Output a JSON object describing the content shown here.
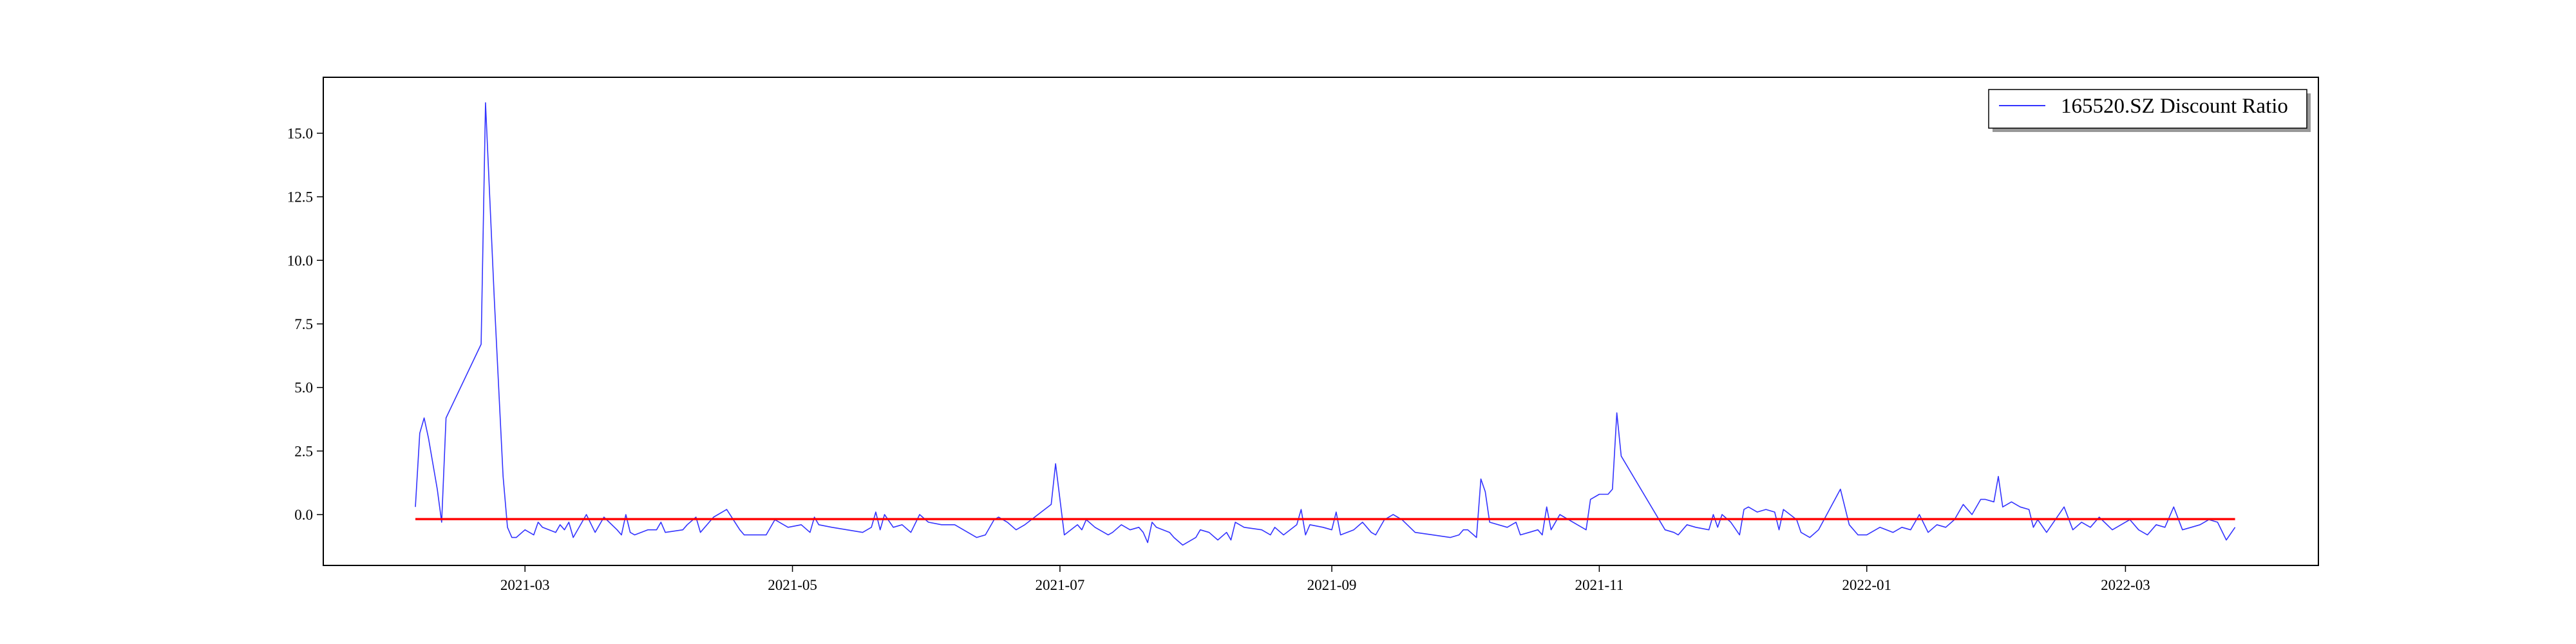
{
  "chart_data": {
    "type": "line",
    "title": "",
    "xlabel": "",
    "ylabel": "",
    "x_range": [
      "2021-01-14",
      "2022-04-14"
    ],
    "ylim": [
      -2.0,
      17.2
    ],
    "x_ticks": [
      {
        "date": "2021-03-01",
        "label": "2021-03"
      },
      {
        "date": "2021-05-01",
        "label": "2021-05"
      },
      {
        "date": "2021-07-01",
        "label": "2021-07"
      },
      {
        "date": "2021-09-01",
        "label": "2021-09"
      },
      {
        "date": "2021-11-01",
        "label": "2021-11"
      },
      {
        "date": "2022-01-01",
        "label": "2022-01"
      },
      {
        "date": "2022-03-01",
        "label": "2022-03"
      }
    ],
    "y_ticks": [
      {
        "value": 0.0,
        "label": "0.0"
      },
      {
        "value": 2.5,
        "label": "2.5"
      },
      {
        "value": 5.0,
        "label": "5.0"
      },
      {
        "value": 7.5,
        "label": "7.5"
      },
      {
        "value": 10.0,
        "label": "10.0"
      },
      {
        "value": 12.5,
        "label": "12.5"
      },
      {
        "value": 15.0,
        "label": "15.0"
      }
    ],
    "grid": false,
    "legend": {
      "position": "top-right",
      "entries": [
        "165520.SZ Discount Ratio"
      ]
    },
    "series": [
      {
        "name": "165520.SZ Discount Ratio",
        "color": "#3333ff",
        "points": [
          [
            "2021-02-04",
            0.3
          ],
          [
            "2021-02-05",
            3.2
          ],
          [
            "2021-02-06",
            3.8
          ],
          [
            "2021-02-07",
            3.0
          ],
          [
            "2021-02-09",
            1.0
          ],
          [
            "2021-02-10",
            -0.3
          ],
          [
            "2021-02-11",
            3.8
          ],
          [
            "2021-02-19",
            6.7
          ],
          [
            "2021-02-20",
            16.2
          ],
          [
            "2021-02-22",
            8.5
          ],
          [
            "2021-02-24",
            1.5
          ],
          [
            "2021-02-25",
            -0.5
          ],
          [
            "2021-02-26",
            -0.9
          ],
          [
            "2021-02-27",
            -0.9
          ],
          [
            "2021-03-01",
            -0.6
          ],
          [
            "2021-03-03",
            -0.8
          ],
          [
            "2021-03-04",
            -0.3
          ],
          [
            "2021-03-05",
            -0.5
          ],
          [
            "2021-03-08",
            -0.7
          ],
          [
            "2021-03-09",
            -0.4
          ],
          [
            "2021-03-10",
            -0.6
          ],
          [
            "2021-03-11",
            -0.3
          ],
          [
            "2021-03-12",
            -0.9
          ],
          [
            "2021-03-15",
            0.0
          ],
          [
            "2021-03-17",
            -0.7
          ],
          [
            "2021-03-19",
            -0.1
          ],
          [
            "2021-03-22",
            -0.6
          ],
          [
            "2021-03-23",
            -0.8
          ],
          [
            "2021-03-24",
            0.0
          ],
          [
            "2021-03-25",
            -0.7
          ],
          [
            "2021-03-26",
            -0.8
          ],
          [
            "2021-03-29",
            -0.6
          ],
          [
            "2021-03-31",
            -0.6
          ],
          [
            "2021-04-01",
            -0.3
          ],
          [
            "2021-04-02",
            -0.7
          ],
          [
            "2021-04-06",
            -0.6
          ],
          [
            "2021-04-07",
            -0.4
          ],
          [
            "2021-04-09",
            -0.1
          ],
          [
            "2021-04-10",
            -0.7
          ],
          [
            "2021-04-13",
            -0.1
          ],
          [
            "2021-04-15",
            0.1
          ],
          [
            "2021-04-16",
            0.2
          ],
          [
            "2021-04-19",
            -0.6
          ],
          [
            "2021-04-20",
            -0.8
          ],
          [
            "2021-04-23",
            -0.8
          ],
          [
            "2021-04-25",
            -0.8
          ],
          [
            "2021-04-27",
            -0.2
          ],
          [
            "2021-04-28",
            -0.3
          ],
          [
            "2021-04-30",
            -0.5
          ],
          [
            "2021-05-03",
            -0.4
          ],
          [
            "2021-05-05",
            -0.7
          ],
          [
            "2021-05-06",
            -0.1
          ],
          [
            "2021-05-07",
            -0.4
          ],
          [
            "2021-05-10",
            -0.5
          ],
          [
            "2021-05-17",
            -0.7
          ],
          [
            "2021-05-19",
            -0.5
          ],
          [
            "2021-05-20",
            0.1
          ],
          [
            "2021-05-21",
            -0.6
          ],
          [
            "2021-05-22",
            0.0
          ],
          [
            "2021-05-24",
            -0.5
          ],
          [
            "2021-05-26",
            -0.4
          ],
          [
            "2021-05-28",
            -0.7
          ],
          [
            "2021-05-30",
            0.0
          ],
          [
            "2021-06-01",
            -0.3
          ],
          [
            "2021-06-04",
            -0.4
          ],
          [
            "2021-06-07",
            -0.4
          ],
          [
            "2021-06-10",
            -0.7
          ],
          [
            "2021-06-12",
            -0.9
          ],
          [
            "2021-06-14",
            -0.8
          ],
          [
            "2021-06-16",
            -0.2
          ],
          [
            "2021-06-17",
            -0.1
          ],
          [
            "2021-06-19",
            -0.3
          ],
          [
            "2021-06-21",
            -0.6
          ],
          [
            "2021-06-23",
            -0.4
          ],
          [
            "2021-06-26",
            0.0
          ],
          [
            "2021-06-29",
            0.4
          ],
          [
            "2021-06-30",
            2.0
          ],
          [
            "2021-07-02",
            -0.8
          ],
          [
            "2021-07-05",
            -0.4
          ],
          [
            "2021-07-06",
            -0.6
          ],
          [
            "2021-07-07",
            -0.2
          ],
          [
            "2021-07-09",
            -0.5
          ],
          [
            "2021-07-12",
            -0.8
          ],
          [
            "2021-07-13",
            -0.7
          ],
          [
            "2021-07-15",
            -0.4
          ],
          [
            "2021-07-17",
            -0.6
          ],
          [
            "2021-07-19",
            -0.5
          ],
          [
            "2021-07-20",
            -0.7
          ],
          [
            "2021-07-21",
            -1.1
          ],
          [
            "2021-07-22",
            -0.3
          ],
          [
            "2021-07-23",
            -0.5
          ],
          [
            "2021-07-26",
            -0.7
          ],
          [
            "2021-07-27",
            -0.9
          ],
          [
            "2021-07-29",
            -1.2
          ],
          [
            "2021-08-01",
            -0.9
          ],
          [
            "2021-08-02",
            -0.6
          ],
          [
            "2021-08-04",
            -0.7
          ],
          [
            "2021-08-06",
            -1.0
          ],
          [
            "2021-08-08",
            -0.7
          ],
          [
            "2021-08-09",
            -1.0
          ],
          [
            "2021-08-10",
            -0.3
          ],
          [
            "2021-08-12",
            -0.5
          ],
          [
            "2021-08-16",
            -0.6
          ],
          [
            "2021-08-18",
            -0.8
          ],
          [
            "2021-08-19",
            -0.5
          ],
          [
            "2021-08-21",
            -0.8
          ],
          [
            "2021-08-24",
            -0.4
          ],
          [
            "2021-08-25",
            0.2
          ],
          [
            "2021-08-26",
            -0.8
          ],
          [
            "2021-08-27",
            -0.4
          ],
          [
            "2021-08-30",
            -0.5
          ],
          [
            "2021-09-01",
            -0.6
          ],
          [
            "2021-09-02",
            0.1
          ],
          [
            "2021-09-03",
            -0.8
          ],
          [
            "2021-09-06",
            -0.6
          ],
          [
            "2021-09-08",
            -0.3
          ],
          [
            "2021-09-10",
            -0.7
          ],
          [
            "2021-09-11",
            -0.8
          ],
          [
            "2021-09-13",
            -0.2
          ],
          [
            "2021-09-15",
            0.0
          ],
          [
            "2021-09-17",
            -0.2
          ],
          [
            "2021-09-20",
            -0.7
          ],
          [
            "2021-09-24",
            -0.8
          ],
          [
            "2021-09-28",
            -0.9
          ],
          [
            "2021-09-30",
            -0.8
          ],
          [
            "2021-10-01",
            -0.6
          ],
          [
            "2021-10-02",
            -0.6
          ],
          [
            "2021-10-04",
            -0.9
          ],
          [
            "2021-10-05",
            1.4
          ],
          [
            "2021-10-06",
            0.9
          ],
          [
            "2021-10-07",
            -0.3
          ],
          [
            "2021-10-11",
            -0.5
          ],
          [
            "2021-10-13",
            -0.3
          ],
          [
            "2021-10-14",
            -0.8
          ],
          [
            "2021-10-16",
            -0.7
          ],
          [
            "2021-10-18",
            -0.6
          ],
          [
            "2021-10-19",
            -0.8
          ],
          [
            "2021-10-20",
            0.3
          ],
          [
            "2021-10-21",
            -0.6
          ],
          [
            "2021-10-23",
            0.0
          ],
          [
            "2021-10-27",
            -0.4
          ],
          [
            "2021-10-29",
            -0.6
          ],
          [
            "2021-10-30",
            0.6
          ],
          [
            "2021-11-01",
            0.8
          ],
          [
            "2021-11-03",
            0.8
          ],
          [
            "2021-11-04",
            1.0
          ],
          [
            "2021-11-05",
            4.0
          ],
          [
            "2021-11-06",
            2.3
          ],
          [
            "2021-11-16",
            -0.6
          ],
          [
            "2021-11-18",
            -0.7
          ],
          [
            "2021-11-19",
            -0.8
          ],
          [
            "2021-11-21",
            -0.4
          ],
          [
            "2021-11-23",
            -0.5
          ],
          [
            "2021-11-26",
            -0.6
          ],
          [
            "2021-11-27",
            0.0
          ],
          [
            "2021-11-28",
            -0.5
          ],
          [
            "2021-11-29",
            0.0
          ],
          [
            "2021-12-01",
            -0.3
          ],
          [
            "2021-12-03",
            -0.8
          ],
          [
            "2021-12-04",
            0.2
          ],
          [
            "2021-12-05",
            0.3
          ],
          [
            "2021-12-07",
            0.1
          ],
          [
            "2021-12-09",
            0.2
          ],
          [
            "2021-12-11",
            0.1
          ],
          [
            "2021-12-12",
            -0.6
          ],
          [
            "2021-12-13",
            0.2
          ],
          [
            "2021-12-16",
            -0.2
          ],
          [
            "2021-12-17",
            -0.7
          ],
          [
            "2021-12-19",
            -0.9
          ],
          [
            "2021-12-21",
            -0.6
          ],
          [
            "2021-12-26",
            1.0
          ],
          [
            "2021-12-28",
            -0.4
          ],
          [
            "2021-12-30",
            -0.8
          ],
          [
            "2022-01-01",
            -0.8
          ],
          [
            "2022-01-04",
            -0.5
          ],
          [
            "2022-01-07",
            -0.7
          ],
          [
            "2022-01-09",
            -0.5
          ],
          [
            "2022-01-11",
            -0.6
          ],
          [
            "2022-01-12",
            -0.3
          ],
          [
            "2022-01-13",
            0.0
          ],
          [
            "2022-01-15",
            -0.7
          ],
          [
            "2022-01-17",
            -0.4
          ],
          [
            "2022-01-19",
            -0.5
          ],
          [
            "2022-01-21",
            -0.2
          ],
          [
            "2022-01-23",
            0.4
          ],
          [
            "2022-01-25",
            0.0
          ],
          [
            "2022-01-27",
            0.6
          ],
          [
            "2022-01-28",
            0.6
          ],
          [
            "2022-01-30",
            0.5
          ],
          [
            "2022-01-31",
            1.5
          ],
          [
            "2022-02-01",
            0.3
          ],
          [
            "2022-02-03",
            0.5
          ],
          [
            "2022-02-05",
            0.3
          ],
          [
            "2022-02-07",
            0.2
          ],
          [
            "2022-02-08",
            -0.5
          ],
          [
            "2022-02-09",
            -0.2
          ],
          [
            "2022-02-11",
            -0.7
          ],
          [
            "2022-02-13",
            -0.2
          ],
          [
            "2022-02-15",
            0.3
          ],
          [
            "2022-02-17",
            -0.6
          ],
          [
            "2022-02-19",
            -0.3
          ],
          [
            "2022-02-21",
            -0.5
          ],
          [
            "2022-02-23",
            -0.1
          ],
          [
            "2022-02-26",
            -0.6
          ],
          [
            "2022-02-28",
            -0.4
          ],
          [
            "2022-03-02",
            -0.2
          ],
          [
            "2022-03-04",
            -0.6
          ],
          [
            "2022-03-06",
            -0.8
          ],
          [
            "2022-03-08",
            -0.4
          ],
          [
            "2022-03-10",
            -0.5
          ],
          [
            "2022-03-12",
            0.3
          ],
          [
            "2022-03-14",
            -0.6
          ],
          [
            "2022-03-16",
            -0.5
          ],
          [
            "2022-03-18",
            -0.4
          ],
          [
            "2022-03-20",
            -0.2
          ],
          [
            "2022-03-22",
            -0.3
          ],
          [
            "2022-03-24",
            -1.0
          ],
          [
            "2022-03-26",
            -0.5
          ]
        ]
      },
      {
        "color": "#ff0000",
        "points": [
          [
            "2021-02-04",
            -0.18
          ],
          [
            "2022-03-26",
            -0.18
          ]
        ]
      }
    ]
  }
}
